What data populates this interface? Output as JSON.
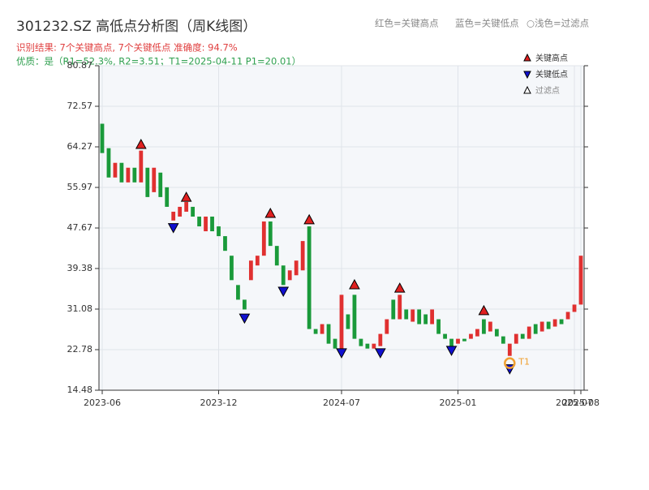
{
  "chart_data": {
    "type": "candlestick",
    "title": "301232.SZ 高低点分析图（周K线图）",
    "subtitle": "识别结果: 7个关键高点, 7个关键低点  准确度: 94.7%",
    "subtitle2": "优质：是（R1=52.3%, R2=3.51；T1=2025-04-11 P1=20.01）",
    "legend_note": [
      "红色=关键高点",
      "蓝色=关键低点",
      "○浅色=过滤点"
    ],
    "categories": [
      "2023-06",
      null,
      null,
      null,
      null,
      null,
      null,
      null,
      null,
      null,
      null,
      null,
      null,
      null,
      null,
      null,
      null,
      null,
      "2023-12",
      null,
      null,
      null,
      null,
      null,
      null,
      null,
      null,
      null,
      null,
      null,
      null,
      null,
      null,
      null,
      null,
      null,
      null,
      "2024-07",
      null,
      null,
      null,
      null,
      null,
      null,
      null,
      null,
      null,
      null,
      null,
      null,
      null,
      null,
      null,
      null,
      null,
      "2025-01",
      null,
      null,
      null,
      null,
      null,
      null,
      null,
      null,
      null,
      null,
      null,
      null,
      null,
      null,
      null,
      null,
      null,
      "2025-07",
      "2025-08"
    ],
    "open": [
      69,
      64,
      58,
      61,
      57,
      60,
      57,
      60,
      55,
      59,
      56,
      49.2,
      50,
      51,
      52,
      50,
      47,
      50,
      48,
      46,
      42,
      36,
      33,
      37,
      40,
      42,
      49,
      44,
      40,
      37,
      38,
      39,
      48,
      27,
      26,
      28,
      25,
      23,
      30,
      34,
      25,
      24,
      23,
      23.5,
      26,
      33,
      29,
      31,
      28.5,
      31,
      30,
      28,
      29,
      26,
      25,
      24,
      25,
      25,
      25.5,
      29,
      26.5,
      27,
      25.5,
      21.5,
      24,
      26,
      25,
      28,
      26.5,
      28.5,
      27.5,
      29,
      29,
      30.5,
      32
    ],
    "close": [
      63,
      58,
      61,
      57,
      60,
      57,
      63.5,
      54,
      60,
      54,
      52,
      51,
      52,
      53,
      50,
      48,
      50,
      47,
      46,
      43,
      37,
      33,
      31,
      41,
      42,
      49,
      44,
      40,
      36,
      39,
      41,
      45,
      27,
      26,
      28,
      24,
      23,
      34,
      27,
      25,
      23.5,
      23,
      24,
      26,
      29,
      29,
      34,
      29,
      31,
      28,
      28,
      31,
      26,
      25,
      23.5,
      25,
      24.5,
      26,
      27,
      26,
      28.5,
      25.5,
      24,
      24,
      26,
      25,
      27.5,
      26,
      28.5,
      27,
      29,
      28,
      30.5,
      32,
      42
    ],
    "up_color": "#e03030",
    "down_color": "#1a9a3a",
    "key_highs": {
      "name": "关键高点",
      "color": "#e02020",
      "indices": [
        6,
        13,
        26,
        32,
        39,
        46,
        59
      ],
      "values": [
        63.6,
        52.8,
        49.5,
        48.2,
        34.9,
        34.2,
        29.6
      ]
    },
    "key_lows": {
      "name": "关键低点",
      "color": "#1010d0",
      "indices": [
        11,
        22,
        28,
        37,
        43,
        54,
        63
      ],
      "values": [
        48.9,
        30.4,
        35.9,
        23.3,
        23.3,
        23.8,
        20.01
      ]
    },
    "filtered": {
      "name": "过滤点",
      "color": "#ffffff"
    },
    "annotation": {
      "text": "T1",
      "index": 63,
      "value": 20.01,
      "color": "#f0a030"
    },
    "ylim": [
      14.48,
      80.87
    ],
    "yticks": [
      14.48,
      22.78,
      31.08,
      39.38,
      47.67,
      55.97,
      64.27,
      72.57,
      80.87
    ],
    "grid": true
  }
}
